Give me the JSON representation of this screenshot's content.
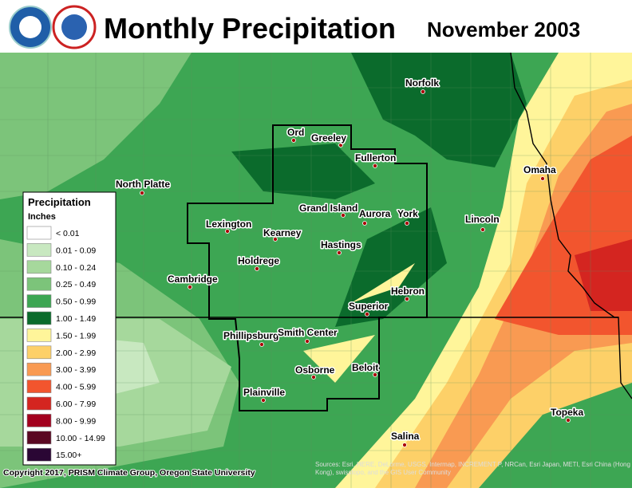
{
  "header": {
    "title": "Monthly Precipitation",
    "date": "November 2003"
  },
  "cities": [
    "Norfolk",
    "Ord",
    "Greeley",
    "Fullerton",
    "North Platte",
    "Lexington",
    "Grand Island",
    "Aurora",
    "York",
    "Kearney",
    "Hastings",
    "Holdrege",
    "Cambridge",
    "Hebron",
    "Superior",
    "Phillipsburg",
    "Smith Center",
    "Osborne",
    "Beloit",
    "Plainville",
    "Lincoln",
    "Omaha",
    "Topeka",
    "Salina"
  ],
  "legend": {
    "title": "Precipitation",
    "units": "Inches",
    "entries": [
      {
        "label": "< 0.01",
        "color": "#ffffff"
      },
      {
        "label": "0.01 - 0.09",
        "color": "#c8e8c0"
      },
      {
        "label": "0.10 - 0.24",
        "color": "#a6d89c"
      },
      {
        "label": "0.25 - 0.49",
        "color": "#7cc47a"
      },
      {
        "label": "0.50 - 0.99",
        "color": "#3da653"
      },
      {
        "label": "1.00 - 1.49",
        "color": "#0b6b2c"
      },
      {
        "label": "1.50 - 1.99",
        "color": "#fff59a"
      },
      {
        "label": "2.00 - 2.99",
        "color": "#fdd068"
      },
      {
        "label": "3.00 - 3.99",
        "color": "#f99a52"
      },
      {
        "label": "4.00 - 5.99",
        "color": "#f2552e"
      },
      {
        "label": "6.00 - 7.99",
        "color": "#d42520"
      },
      {
        "label": "8.00 - 9.99",
        "color": "#a3001e"
      },
      {
        "label": "10.00 - 14.99",
        "color": "#5a0822"
      },
      {
        "label": "15.00+",
        "color": "#2a0634"
      }
    ]
  },
  "footer": {
    "copyright": "Copyright 2017, PRISM Climate Group, Oregon State University",
    "source": "Sources: Esri, HERE, DeLorme, USGS, Intermap, INCREMENT P, NRCan, Esri Japan, METI, Esri China (Hong Kong), swisstopo, and the GIS User Community"
  }
}
